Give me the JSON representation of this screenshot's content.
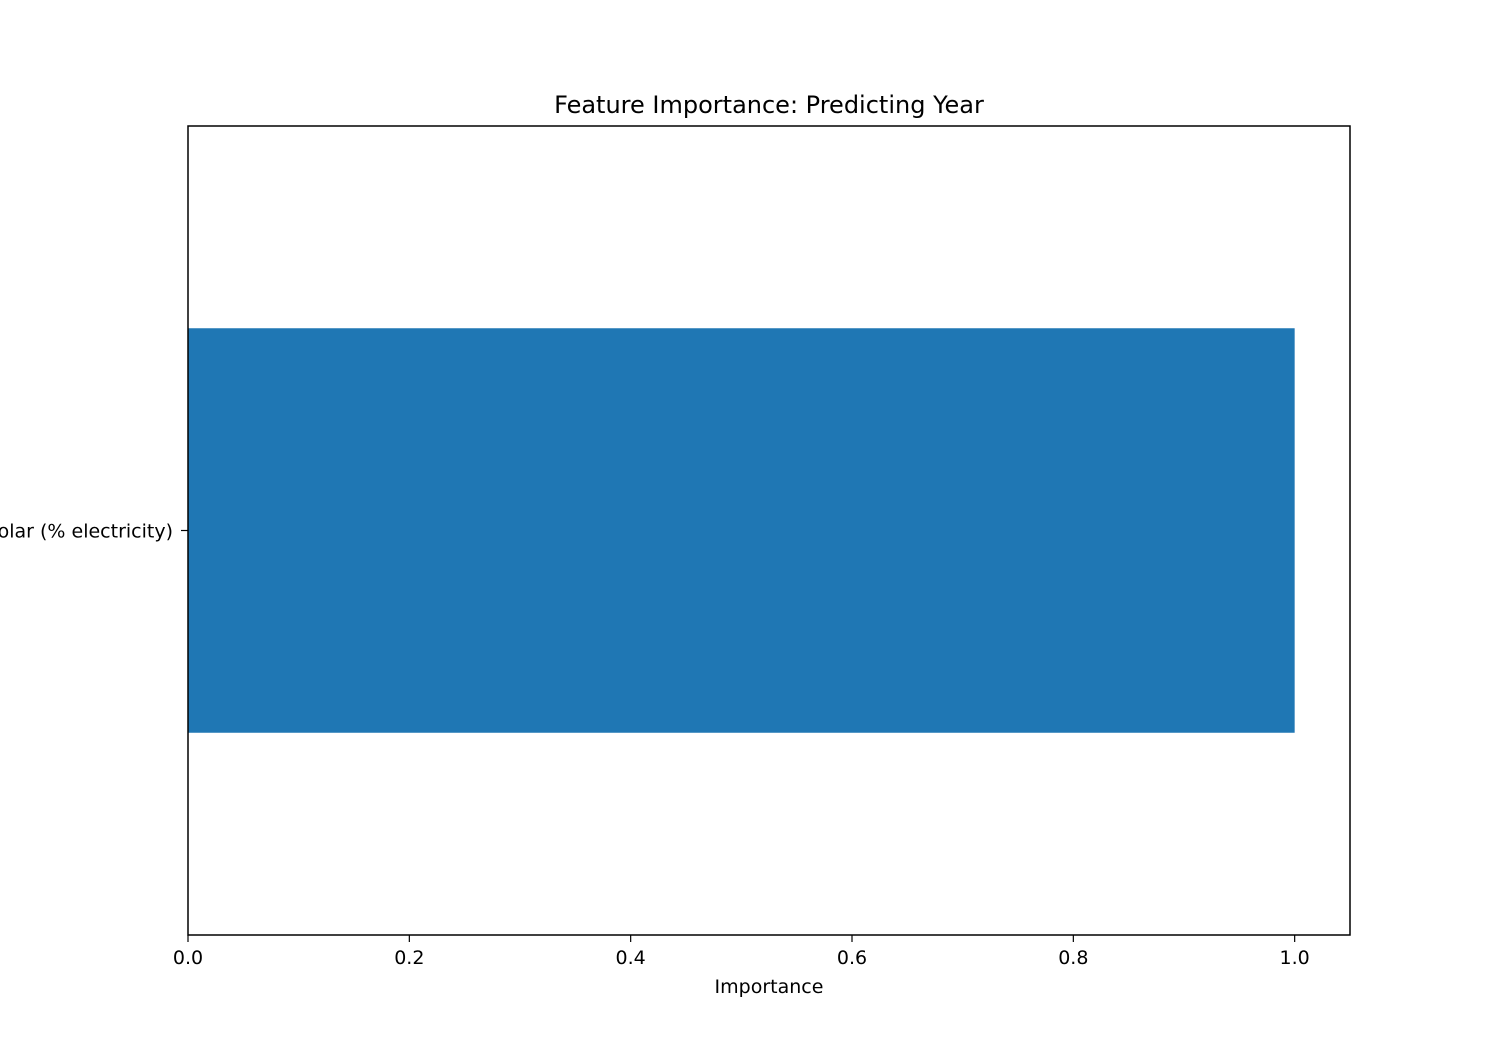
{
  "chart_data": {
    "type": "bar",
    "orientation": "horizontal",
    "title": "Feature Importance: Predicting Year",
    "xlabel": "Importance",
    "ylabel": "",
    "categories": [
      "Solar (% electricity)"
    ],
    "values": [
      1.0
    ],
    "xlim": [
      0.0,
      1.05
    ],
    "xticks": [
      0.0,
      0.2,
      0.4,
      0.6,
      0.8,
      1.0
    ],
    "xtick_labels": [
      "0.0",
      "0.2",
      "0.4",
      "0.6",
      "0.8",
      "1.0"
    ],
    "grid": false,
    "bar_color": "#1f77b4"
  }
}
